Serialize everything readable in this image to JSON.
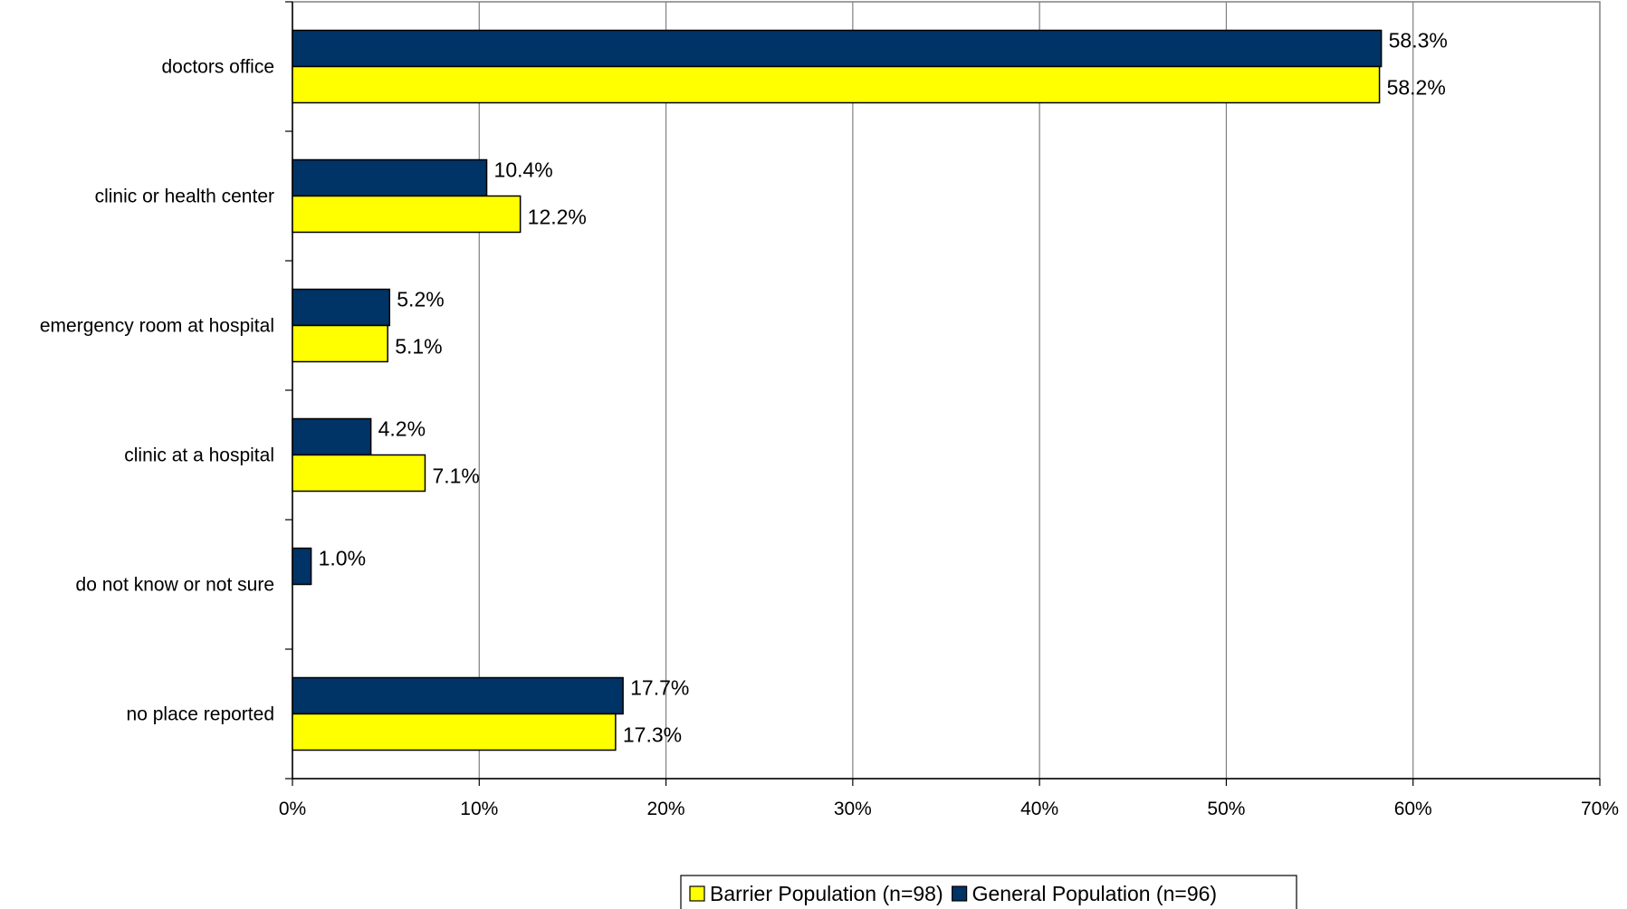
{
  "chart_data": {
    "type": "bar",
    "orientation": "horizontal",
    "categories": [
      "doctors office",
      "clinic or health center",
      "emergency room at hospital",
      "clinic at a hospital",
      "do not know or not sure",
      "no place reported"
    ],
    "series": [
      {
        "name": "General Population (n=96)",
        "color": "#003366",
        "values": [
          58.3,
          10.4,
          5.2,
          4.2,
          1.0,
          17.7
        ],
        "labels": [
          "58.3%",
          "10.4%",
          "5.2%",
          "4.2%",
          "1.0%",
          "17.7%"
        ]
      },
      {
        "name": "Barrier Population (n=98)",
        "color": "#ffff00",
        "values": [
          58.2,
          12.2,
          5.1,
          7.1,
          null,
          17.3
        ],
        "labels": [
          "58.2%",
          "12.2%",
          "5.1%",
          "7.1%",
          "",
          "17.3%"
        ]
      }
    ],
    "x_ticks": [
      "0%",
      "10%",
      "20%",
      "30%",
      "40%",
      "50%",
      "60%",
      "70%"
    ],
    "xlim": [
      0,
      70
    ],
    "grid": "vertical",
    "legend": {
      "position": "bottom",
      "entries": [
        "Barrier Population (n=98)",
        "General Population (n=96)"
      ]
    }
  }
}
